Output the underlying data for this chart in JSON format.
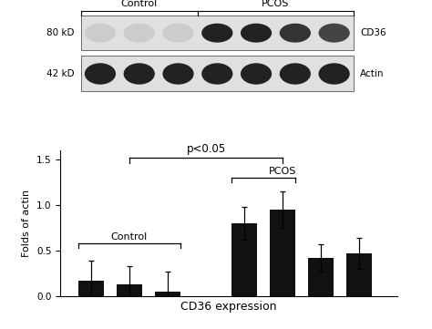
{
  "bar_values": [
    0.17,
    0.13,
    0.05,
    0.8,
    0.95,
    0.42,
    0.47
  ],
  "bar_errors": [
    0.22,
    0.2,
    0.22,
    0.18,
    0.2,
    0.15,
    0.17
  ],
  "bar_color": "#111111",
  "bar_positions": [
    1,
    2,
    3,
    5,
    6,
    7,
    8
  ],
  "ylim": [
    0,
    1.6
  ],
  "yticks": [
    0,
    0.5,
    1.0,
    1.5
  ],
  "ylabel": "Folds of actin",
  "xlabel": "CD36 expression",
  "control_label": "Control",
  "pcos_bar_label": "PCOS",
  "pvalue_text": "p<0.05",
  "background_color": "#ffffff",
  "blot_bg_light": "#e0e0e0",
  "n_lanes": 7,
  "n_control": 3,
  "n_pcos": 4,
  "kd80_label": "80 kD",
  "kd42_label": "42 kD",
  "cd36_label": "CD36",
  "actin_label": "Actin",
  "control_header": "Control",
  "pcos_header": "PCOS",
  "control_cd36_colors": [
    "#cccccc",
    "#cccccc",
    "#cccccc"
  ],
  "pcos_cd36_colors": [
    "#222222",
    "#222222",
    "#333333",
    "#444444"
  ],
  "actin_colors": [
    "#222222",
    "#222222",
    "#222222",
    "#222222",
    "#222222",
    "#222222",
    "#222222"
  ]
}
